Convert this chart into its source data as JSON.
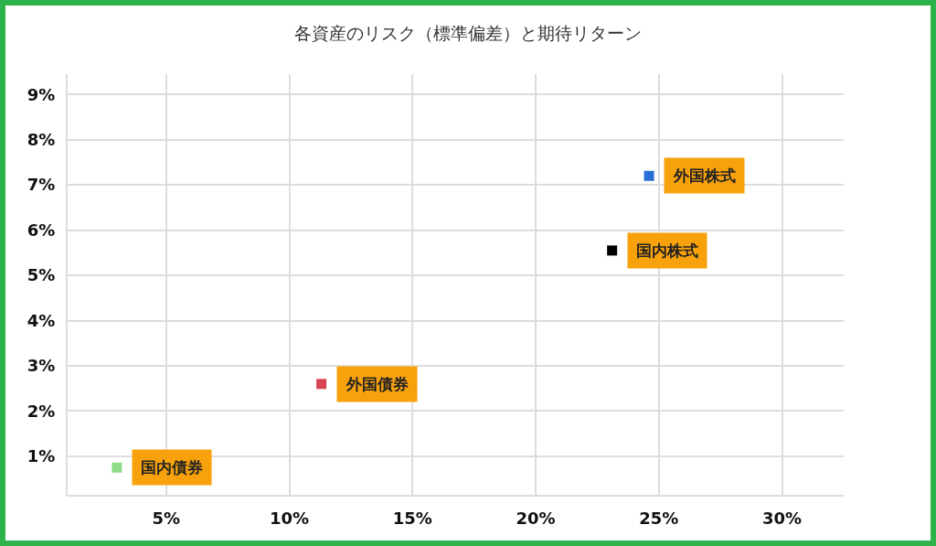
{
  "chart_data": {
    "type": "scatter",
    "title": "各資産のリスク（標準偏差）と期待リターン",
    "marker": "square",
    "grid": true,
    "legend": false,
    "xlim": [
      1,
      32.5
    ],
    "ylim": [
      0.15,
      9.45
    ],
    "xticks": [
      {
        "value": 5,
        "label": "5%"
      },
      {
        "value": 10,
        "label": "10%"
      },
      {
        "value": 15,
        "label": "15%"
      },
      {
        "value": 20,
        "label": "20%"
      },
      {
        "value": 25,
        "label": "25%"
      },
      {
        "value": 30,
        "label": "30%"
      }
    ],
    "yticks": [
      {
        "value": 1,
        "label": "1%"
      },
      {
        "value": 2,
        "label": "2%"
      },
      {
        "value": 3,
        "label": "3%"
      },
      {
        "value": 4,
        "label": "4%"
      },
      {
        "value": 5,
        "label": "5%"
      },
      {
        "value": 6,
        "label": "6%"
      },
      {
        "value": 7,
        "label": "7%"
      },
      {
        "value": 8,
        "label": "8%"
      },
      {
        "value": 9,
        "label": "9%"
      }
    ],
    "series": [
      {
        "name": "国内債券",
        "color": "#8fdc8a",
        "x": [
          3.0
        ],
        "values": [
          0.75
        ]
      },
      {
        "name": "外国債券",
        "color": "#d94452",
        "x": [
          11.3
        ],
        "values": [
          2.6
        ]
      },
      {
        "name": "国内株式",
        "color": "#000000",
        "x": [
          23.1
        ],
        "values": [
          5.55
        ]
      },
      {
        "name": "外国株式",
        "color": "#2a6fd6",
        "x": [
          24.6
        ],
        "values": [
          7.2
        ]
      }
    ]
  }
}
